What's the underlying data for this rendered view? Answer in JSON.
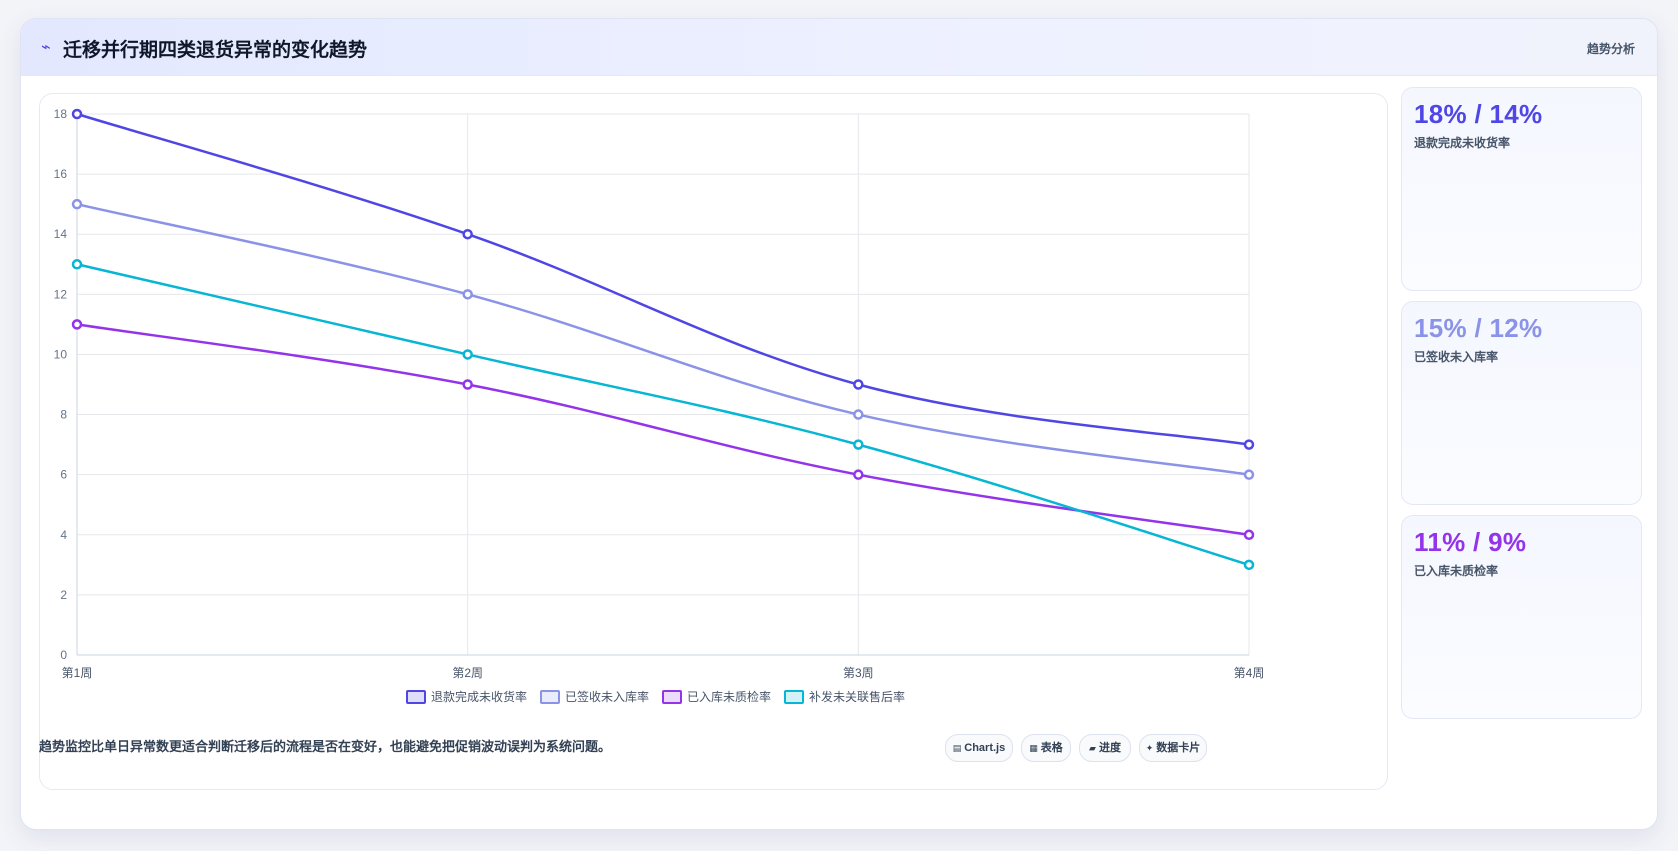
{
  "header": {
    "icon": "trend-line-icon",
    "title": "迁移并行期四类退货异常的变化趋势",
    "tag": "趋势分析"
  },
  "stats": [
    {
      "value": "18% / 14%",
      "label": "退款完成未收货率",
      "color": "#4f46e5"
    },
    {
      "value": "15% / 12%",
      "label": "已签收未入库率",
      "color": "#8b93e8"
    },
    {
      "value": "11% / 9%",
      "label": "已入库未质检率",
      "color": "#9333ea"
    }
  ],
  "footer": {
    "note": "趋势监控比单日异常数更适合判断迁移后的流程是否在变好，也能避免把促销波动误判为系统问题。",
    "chips": [
      {
        "icon": "chart-icon",
        "glyph": "▤",
        "label": "Chart.js"
      },
      {
        "icon": "table-icon",
        "glyph": "▦",
        "label": "表格"
      },
      {
        "icon": "progress-icon",
        "glyph": "▰",
        "label": "进度"
      },
      {
        "icon": "data-card-icon",
        "glyph": "✦",
        "label": "数据卡片"
      }
    ]
  },
  "chart_data": {
    "type": "line",
    "categories": [
      "第1周",
      "第2周",
      "第3周",
      "第4周"
    ],
    "series": [
      {
        "name": "退款完成未收货率",
        "values": [
          18,
          14,
          9,
          7
        ],
        "color": "#4f46e5"
      },
      {
        "name": "已签收未入库率",
        "values": [
          15,
          12,
          8,
          6
        ],
        "color": "#8b93e8"
      },
      {
        "name": "已入库未质检率",
        "values": [
          11,
          9,
          6,
          4
        ],
        "color": "#9333ea"
      },
      {
        "name": "补发未关联售后率",
        "values": [
          13,
          10,
          7,
          3
        ],
        "color": "#06b6d4"
      }
    ],
    "yticks": [
      0,
      2,
      4,
      6,
      8,
      10,
      12,
      14,
      16,
      18
    ],
    "ylim": [
      0,
      18
    ],
    "grid": true,
    "legend": "bottom"
  }
}
